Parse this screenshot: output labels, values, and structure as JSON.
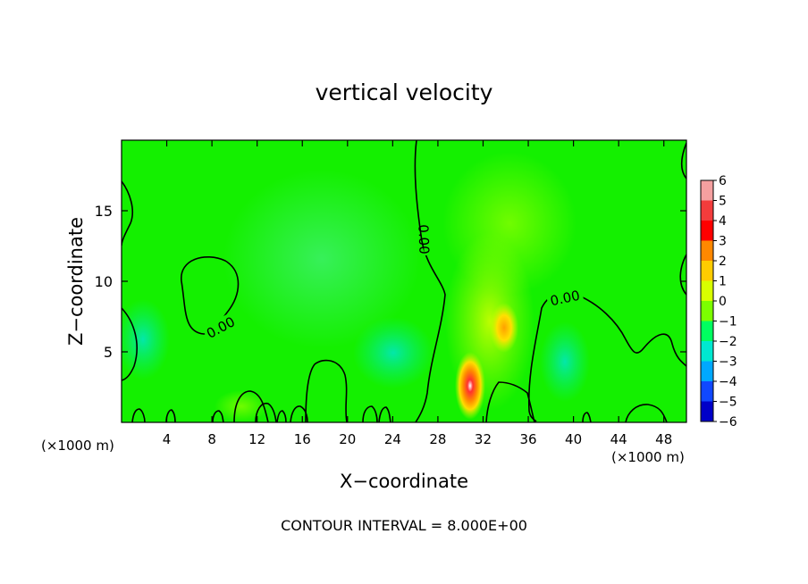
{
  "chart_data": {
    "type": "heatmap",
    "title": "vertical velocity",
    "xlabel": "X−coordinate",
    "ylabel": "Z−coordinate",
    "x_unit_left": "(×1000 m)",
    "x_unit_right": "(×1000 m)",
    "xlim": [
      0,
      50
    ],
    "ylim": [
      0,
      20
    ],
    "x_ticks": [
      4,
      8,
      12,
      16,
      20,
      24,
      28,
      32,
      36,
      40,
      44,
      48
    ],
    "y_ticks": [
      5,
      10,
      15
    ],
    "colorbar": {
      "labels": [
        "6",
        "5",
        "4",
        "3",
        "2",
        "1",
        "0",
        "−1",
        "−2",
        "−3",
        "−4",
        "−5",
        "−6"
      ],
      "colors": [
        "#f5a0a0",
        "#f33c3c",
        "#ff0000",
        "#ff8800",
        "#ffcc00",
        "#d8ff00",
        "#7cff00",
        "#00ff60",
        "#00e8d0",
        "#00a8ff",
        "#1048ff",
        "#0000c8",
        "#8000c0"
      ]
    },
    "contour_labels": [
      "0.00",
      "0.00",
      "0.00"
    ],
    "contour_interval_text": "CONTOUR INTERVAL = 8.000E+00",
    "features": [
      {
        "x": 30.7,
        "z": 2.3,
        "value": 6
      },
      {
        "x": 33.8,
        "z": 6.5,
        "value": 3
      }
    ]
  }
}
